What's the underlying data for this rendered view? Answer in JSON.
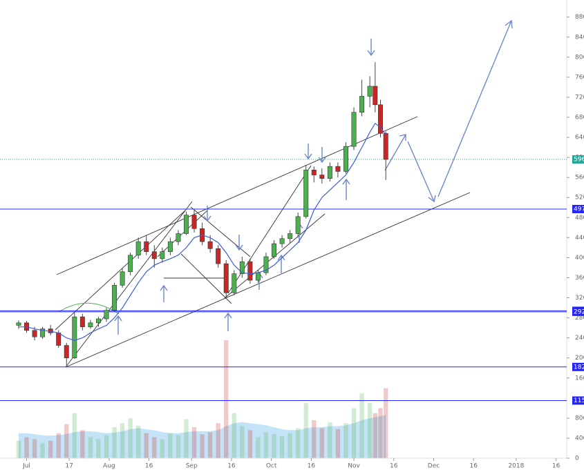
{
  "chart_data": {
    "type": "candlestick",
    "x": [
      "2017-06-28",
      "2017-07-01",
      "2017-07-04",
      "2017-07-07",
      "2017-07-10",
      "2017-07-13",
      "2017-07-16",
      "2017-07-19",
      "2017-07-22",
      "2017-07-25",
      "2017-07-28",
      "2017-07-31",
      "2017-08-03",
      "2017-08-06",
      "2017-08-09",
      "2017-08-12",
      "2017-08-15",
      "2017-08-18",
      "2017-08-21",
      "2017-08-24",
      "2017-08-27",
      "2017-08-30",
      "2017-09-02",
      "2017-09-05",
      "2017-09-08",
      "2017-09-11",
      "2017-09-14",
      "2017-09-17",
      "2017-09-20",
      "2017-09-23",
      "2017-09-26",
      "2017-09-29",
      "2017-10-02",
      "2017-10-05",
      "2017-10-08",
      "2017-10-11",
      "2017-10-14",
      "2017-10-17",
      "2017-10-20",
      "2017-10-23",
      "2017-10-26",
      "2017-10-29",
      "2017-11-01",
      "2017-11-04",
      "2017-11-07",
      "2017-11-09",
      "2017-11-11",
      "2017-11-13"
    ],
    "open": [
      265,
      270,
      255,
      242,
      258,
      250,
      225,
      200,
      282,
      262,
      270,
      278,
      295,
      345,
      372,
      405,
      432,
      412,
      398,
      412,
      432,
      448,
      485,
      458,
      432,
      418,
      388,
      330,
      368,
      392,
      355,
      370,
      402,
      428,
      438,
      448,
      482,
      575,
      565,
      558,
      582,
      572,
      622,
      690,
      722,
      742,
      705,
      648
    ],
    "high": [
      275,
      274,
      262,
      262,
      266,
      255,
      230,
      290,
      288,
      276,
      282,
      300,
      350,
      380,
      410,
      440,
      445,
      425,
      420,
      440,
      455,
      492,
      495,
      470,
      445,
      425,
      395,
      375,
      402,
      398,
      375,
      410,
      435,
      445,
      455,
      490,
      585,
      582,
      578,
      590,
      590,
      630,
      700,
      755,
      762,
      790,
      715,
      652
    ],
    "low": [
      258,
      250,
      235,
      238,
      245,
      220,
      185,
      198,
      255,
      258,
      262,
      272,
      292,
      340,
      365,
      398,
      405,
      380,
      390,
      405,
      425,
      445,
      450,
      425,
      410,
      380,
      318,
      325,
      360,
      348,
      350,
      365,
      398,
      420,
      430,
      440,
      478,
      550,
      548,
      552,
      560,
      568,
      615,
      682,
      700,
      690,
      640,
      555
    ],
    "close": [
      270,
      255,
      242,
      258,
      250,
      225,
      200,
      282,
      262,
      270,
      278,
      295,
      345,
      372,
      405,
      432,
      412,
      398,
      412,
      432,
      448,
      485,
      458,
      432,
      418,
      388,
      330,
      368,
      392,
      355,
      370,
      402,
      428,
      438,
      448,
      482,
      575,
      565,
      558,
      582,
      572,
      622,
      690,
      722,
      742,
      705,
      648,
      596
    ],
    "ma": [
      262,
      262,
      258,
      255,
      253,
      250,
      240,
      235,
      240,
      250,
      258,
      265,
      280,
      300,
      325,
      350,
      372,
      385,
      392,
      398,
      405,
      420,
      440,
      445,
      440,
      430,
      410,
      385,
      370,
      368,
      370,
      375,
      385,
      400,
      415,
      430,
      455,
      495,
      520,
      535,
      550,
      565,
      590,
      620,
      650,
      668,
      660,
      645
    ],
    "volume": [
      350,
      420,
      380,
      300,
      350,
      500,
      680,
      900,
      560,
      420,
      380,
      460,
      620,
      700,
      800,
      650,
      500,
      420,
      380,
      500,
      460,
      780,
      620,
      480,
      520,
      700,
      2360,
      900,
      640,
      560,
      420,
      520,
      480,
      440,
      500,
      600,
      1100,
      760,
      600,
      720,
      580,
      700,
      1000,
      1300,
      1100,
      900,
      1000,
      1400
    ],
    "volume_ma": [
      500,
      500,
      480,
      460,
      450,
      460,
      480,
      520,
      540,
      540,
      520,
      500,
      510,
      540,
      580,
      600,
      580,
      560,
      520,
      500,
      500,
      520,
      540,
      540,
      540,
      560,
      640,
      700,
      720,
      700,
      680,
      660,
      620,
      580,
      560,
      560,
      600,
      620,
      620,
      640,
      640,
      660,
      700,
      760,
      800,
      820,
      840,
      860
    ],
    "up_color": "#4caf50",
    "down_color": "#c62828",
    "ma_color": "#3b5bdb",
    "level_color": "#2323ff",
    "last_color": "#26a69a",
    "xlim": [
      "2017-06-21",
      "2018-01-20"
    ],
    "xticks": [
      {
        "value": "2017-07-01",
        "label": "Jul"
      },
      {
        "value": "2017-07-17",
        "label": "17"
      },
      {
        "value": "2017-08-01",
        "label": "Aug"
      },
      {
        "value": "2017-08-16",
        "label": "16"
      },
      {
        "value": "2017-09-01",
        "label": "Sep"
      },
      {
        "value": "2017-09-16",
        "label": "16"
      },
      {
        "value": "2017-10-01",
        "label": "Oct"
      },
      {
        "value": "2017-10-16",
        "label": "16"
      },
      {
        "value": "2017-11-01",
        "label": "Nov"
      },
      {
        "value": "2017-11-16",
        "label": "16"
      },
      {
        "value": "2017-12-01",
        "label": "Dec"
      },
      {
        "value": "2017-12-16",
        "label": "16"
      },
      {
        "value": "2018-01-01",
        "label": "2018"
      },
      {
        "value": "2018-01-16",
        "label": "16"
      }
    ],
    "ylim": [
      0,
      914
    ],
    "yticks": [
      160,
      200,
      240,
      280,
      320,
      360,
      400,
      440,
      480,
      520,
      560,
      600,
      640,
      680,
      720,
      760,
      800,
      840,
      880
    ],
    "y2lim": [
      0,
      9160
    ],
    "y2ticks": [
      0,
      400,
      800
    ],
    "last_price": 596,
    "levels": [
      497,
      294,
      292,
      182,
      115
    ]
  }
}
